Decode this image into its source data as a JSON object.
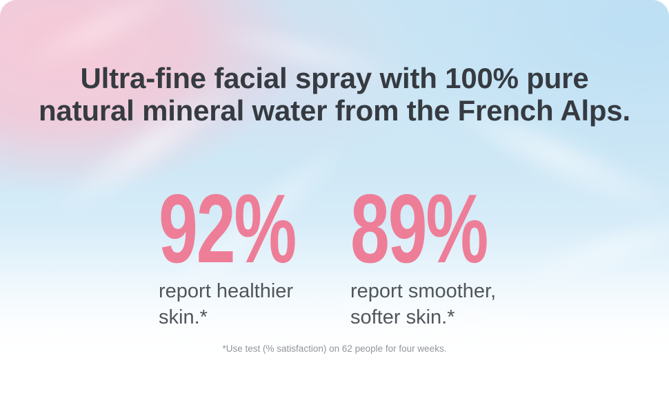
{
  "banner": {
    "headline": {
      "lines": [
        "Ultra-fine facial spray with 100% pure",
        "natural mineral water from the French Alps."
      ]
    },
    "stats": [
      {
        "value": "92%",
        "caption_lines": [
          "report healthier",
          "skin.*"
        ]
      },
      {
        "value": "89%",
        "caption_lines": [
          "report smoother,",
          "softer skin.*"
        ]
      }
    ],
    "footnote": "*Use test (% satisfaction) on 62 people for four weeks.",
    "colors": {
      "stat_pink": "#ee7e98",
      "headline_charcoal": "#363b41",
      "caption_gray": "#50565c",
      "footnote_gray": "#8f969c",
      "bg_pink": "#f8c9d7",
      "bg_blue_top": "#c3e2f4",
      "bg_blue_mid": "#cfe9f6",
      "bg_bottom": "#ffffff"
    }
  }
}
